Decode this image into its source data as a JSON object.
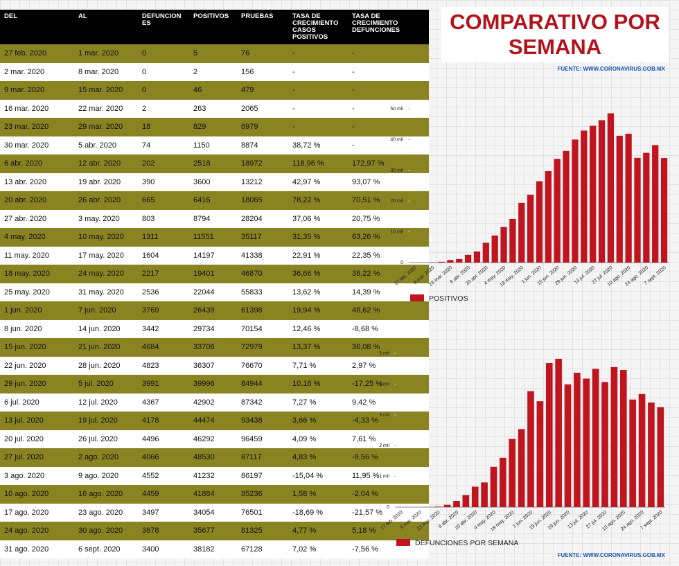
{
  "title": "COMPARATIVO POR SEMANA",
  "source_top": "FUENTE: WWW.CORONAVIRUS.GOB.MX",
  "source_bottom": "FUENTE: WWW.CORONAVIRUS.GOB.MX",
  "table": {
    "header": [
      "DEL",
      "AL",
      "DEFUNCIONES",
      "POSITIVOS",
      "PRUEBAS",
      "TASA DE CRECIMIENTO CASOS POSITIVOS",
      "TASA DE CRECIMIENTO DEFUNCIONES"
    ],
    "rows": [
      [
        "27 feb. 2020",
        "1 mar. 2020",
        "0",
        "5",
        "76",
        "-",
        "-"
      ],
      [
        "2 mar. 2020",
        "8 mar. 2020",
        "0",
        "2",
        "156",
        "-",
        "-"
      ],
      [
        "9 mar. 2020",
        "15 mar. 2020",
        "0",
        "46",
        "479",
        "-",
        "-"
      ],
      [
        "16 mar. 2020",
        "22 mar. 2020",
        "2",
        "263",
        "2065",
        "-",
        "-"
      ],
      [
        "23 mar. 2020",
        "29 mar. 2020",
        "18",
        "829",
        "6979",
        "-",
        "-"
      ],
      [
        "30 mar. 2020",
        "5 abr. 2020",
        "74",
        "1150",
        "8874",
        "38,72 %",
        "-"
      ],
      [
        "6 abr. 2020",
        "12 abr. 2020",
        "202",
        "2518",
        "18972",
        "118,96 %",
        "172,97 %"
      ],
      [
        "13 abr. 2020",
        "19 abr. 2020",
        "390",
        "3600",
        "13212",
        "42,97 %",
        "93,07 %"
      ],
      [
        "20 abr. 2020",
        "26 abr. 2020",
        "665",
        "6416",
        "18065",
        "78,22 %",
        "70,51 %"
      ],
      [
        "27 abr. 2020",
        "3 may. 2020",
        "803",
        "8794",
        "28204",
        "37,06 %",
        "20,75 %"
      ],
      [
        "4 may. 2020",
        "10 may. 2020",
        "1311",
        "11551",
        "35117",
        "31,35 %",
        "63,26 %"
      ],
      [
        "11 may. 2020",
        "17 may. 2020",
        "1604",
        "14197",
        "41338",
        "22,91 %",
        "22,35 %"
      ],
      [
        "18 may. 2020",
        "24 may. 2020",
        "2217",
        "19401",
        "46870",
        "36,66 %",
        "38,22 %"
      ],
      [
        "25 may. 2020",
        "31 may. 2020",
        "2536",
        "22044",
        "55833",
        "13,62 %",
        "14,39 %"
      ],
      [
        "1 jun. 2020",
        "7 jun. 2020",
        "3769",
        "26439",
        "61398",
        "19,94 %",
        "48,62 %"
      ],
      [
        "8 jun. 2020",
        "14 jun. 2020",
        "3442",
        "29734",
        "70154",
        "12,46 %",
        "-8,68 %"
      ],
      [
        "15 jun. 2020",
        "21 jun. 2020",
        "4684",
        "33708",
        "72979",
        "13,37 %",
        "36,08 %"
      ],
      [
        "22 jun. 2020",
        "28 jun. 2020",
        "4823",
        "36307",
        "76670",
        "7,71 %",
        "2,97 %"
      ],
      [
        "29 jun. 2020",
        "5 jul. 2020",
        "3991",
        "39996",
        "84944",
        "10,16 %",
        "-17,25 %"
      ],
      [
        "6 jul. 2020",
        "12 jul. 2020",
        "4367",
        "42902",
        "87342",
        "7,27 %",
        "9,42 %"
      ],
      [
        "13 jul. 2020",
        "19 jul. 2020",
        "4178",
        "44474",
        "93438",
        "3,66 %",
        "-4,33 %"
      ],
      [
        "20 jul. 2020",
        "26 jul. 2020",
        "4496",
        "46292",
        "96459",
        "4,09 %",
        "7,61 %"
      ],
      [
        "27 jul. 2020",
        "2 ago. 2020",
        "4066",
        "48530",
        "87117",
        "4,83 %",
        "-9,56 %"
      ],
      [
        "3 ago. 2020",
        "9 ago. 2020",
        "4552",
        "41232",
        "86197",
        "-15,04 %",
        "11,95 %"
      ],
      [
        "10 ago. 2020",
        "16 ago. 2020",
        "4459",
        "41884",
        "85236",
        "1,58 %",
        "-2,04 %"
      ],
      [
        "17 ago. 2020",
        "23 ago. 2020",
        "3497",
        "34054",
        "76501",
        "-18,69 %",
        "-21,57 %"
      ],
      [
        "24 ago. 2020",
        "30 ago. 2020",
        "3678",
        "35677",
        "81325",
        "4,77 %",
        "5,18 %"
      ],
      [
        "31 ago. 2020",
        "6 sept. 2020",
        "3400",
        "38182",
        "67128",
        "7,02 %",
        "-7,56 %"
      ]
    ]
  },
  "chart_data": [
    {
      "type": "bar",
      "categories": [
        "27 feb. 2020",
        null,
        "9 mar. 2020",
        null,
        "23 mar. 2020",
        null,
        "6 abr. 2020",
        null,
        "20 abr. 2020",
        null,
        "4 may. 2020",
        null,
        "18 may. 2020",
        null,
        "1 jun. 2020",
        null,
        "15 jun. 2020",
        null,
        "29 jun. 2020",
        null,
        "13 jul. 2020",
        null,
        "27 jul. 2020",
        null,
        "10 ago. 2020",
        null,
        "24 ago. 2020",
        null,
        "7 sept. 2020"
      ],
      "series": [
        {
          "name": "POSITIVOS",
          "color": "#c0141e",
          "values": [
            5,
            2,
            46,
            263,
            829,
            1150,
            2518,
            3600,
            6416,
            8794,
            11551,
            14197,
            19401,
            22044,
            26439,
            29734,
            33708,
            36307,
            39996,
            42902,
            44474,
            46292,
            48530,
            41232,
            41884,
            34054,
            35677,
            38182,
            34000
          ]
        }
      ],
      "ylim": [
        0,
        50000
      ],
      "yticks": [
        0,
        {
          "value": 10000,
          "label": "10 mil"
        },
        {
          "value": 20000,
          "label": "20 mil"
        },
        {
          "value": 30000,
          "label": "30 mil"
        },
        {
          "value": 40000,
          "label": "40 mil"
        },
        {
          "value": 50000,
          "label": "50 mil"
        }
      ],
      "legend": "bottom-left"
    },
    {
      "type": "bar",
      "categories": [
        "27 feb. 2020",
        null,
        "9 mar. 2020",
        null,
        "23 mar. 2020",
        null,
        "6 abr. 2020",
        null,
        "20 abr. 2020",
        null,
        "4 may. 2020",
        null,
        "18 may. 2020",
        null,
        "1 jun. 2020",
        null,
        "15 jun. 2020",
        null,
        "29 jun. 2020",
        null,
        "13 jul. 2020",
        null,
        "27 jul. 2020",
        null,
        "10 ago. 2020",
        null,
        "24 ago. 2020",
        null,
        "7 sept. 2020"
      ],
      "series": [
        {
          "name": "DEFUNCIONES POR SEMANA",
          "color": "#c0141e",
          "values": [
            0,
            0,
            0,
            2,
            18,
            74,
            202,
            390,
            665,
            803,
            1311,
            1604,
            2217,
            2536,
            3769,
            3442,
            4684,
            4823,
            3991,
            4367,
            4178,
            4496,
            4066,
            4552,
            4459,
            3497,
            3678,
            3400,
            3250
          ]
        }
      ],
      "ylim": [
        0,
        5000
      ],
      "yticks": [
        0,
        {
          "value": 1000,
          "label": "1 mil"
        },
        {
          "value": 2000,
          "label": "2 mil"
        },
        {
          "value": 3000,
          "label": "3 mil"
        },
        {
          "value": 4000,
          "label": "4 mil"
        },
        {
          "value": 5000,
          "label": "5 mil"
        }
      ],
      "legend": "bottom-left"
    }
  ]
}
